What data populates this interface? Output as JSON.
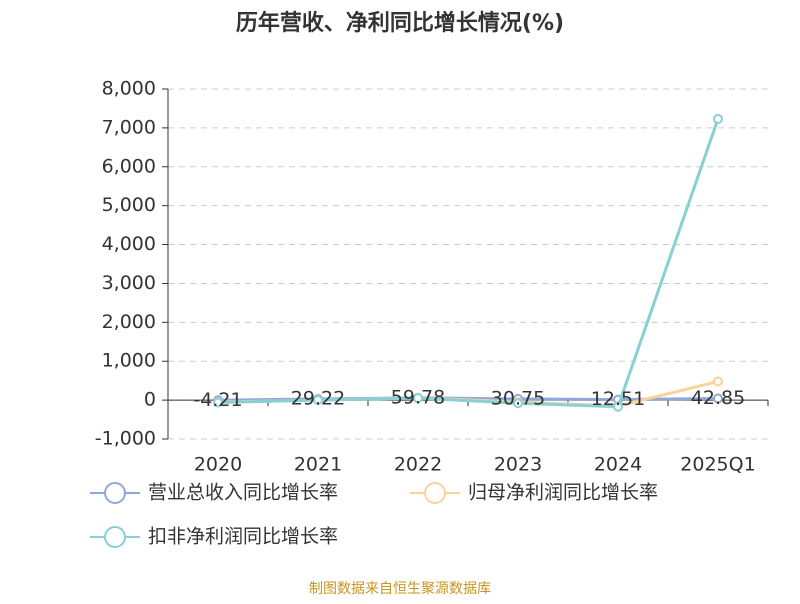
{
  "chart_data": {
    "type": "line",
    "title": "历年营收、净利同比增长情况(%)",
    "categories": [
      "2020",
      "2021",
      "2022",
      "2023",
      "2024",
      "2025Q1"
    ],
    "series": [
      {
        "name": "营业总收入同比增长率",
        "color": "#8fa8d8",
        "values": [
          -4.21,
          29.22,
          59.78,
          30.75,
          12.51,
          42.85
        ],
        "show_labels": true
      },
      {
        "name": "归母净利润同比增长率",
        "color": "#f9d39a",
        "values": [
          -50,
          0,
          60,
          -50,
          -150,
          480
        ],
        "show_labels": false
      },
      {
        "name": "扣非净利润同比增长率",
        "color": "#86d0d6",
        "values": [
          -60,
          0,
          50,
          -80,
          -170,
          7230
        ],
        "show_labels": false
      }
    ],
    "ylim": [
      -1000,
      8000
    ],
    "yticks": [
      {
        "value": -1000,
        "label": "-1,000"
      },
      0,
      {
        "value": 1000,
        "label": "1,000"
      },
      {
        "value": 2000,
        "label": "2,000"
      },
      {
        "value": 3000,
        "label": "3,000"
      },
      {
        "value": 4000,
        "label": "4,000"
      },
      {
        "value": 5000,
        "label": "5,000"
      },
      {
        "value": 6000,
        "label": "6,000"
      },
      {
        "value": 7000,
        "label": "7,000"
      },
      {
        "value": 8000,
        "label": "8,000"
      }
    ],
    "grid": true,
    "source": "制图数据来自恒生聚源数据库"
  }
}
